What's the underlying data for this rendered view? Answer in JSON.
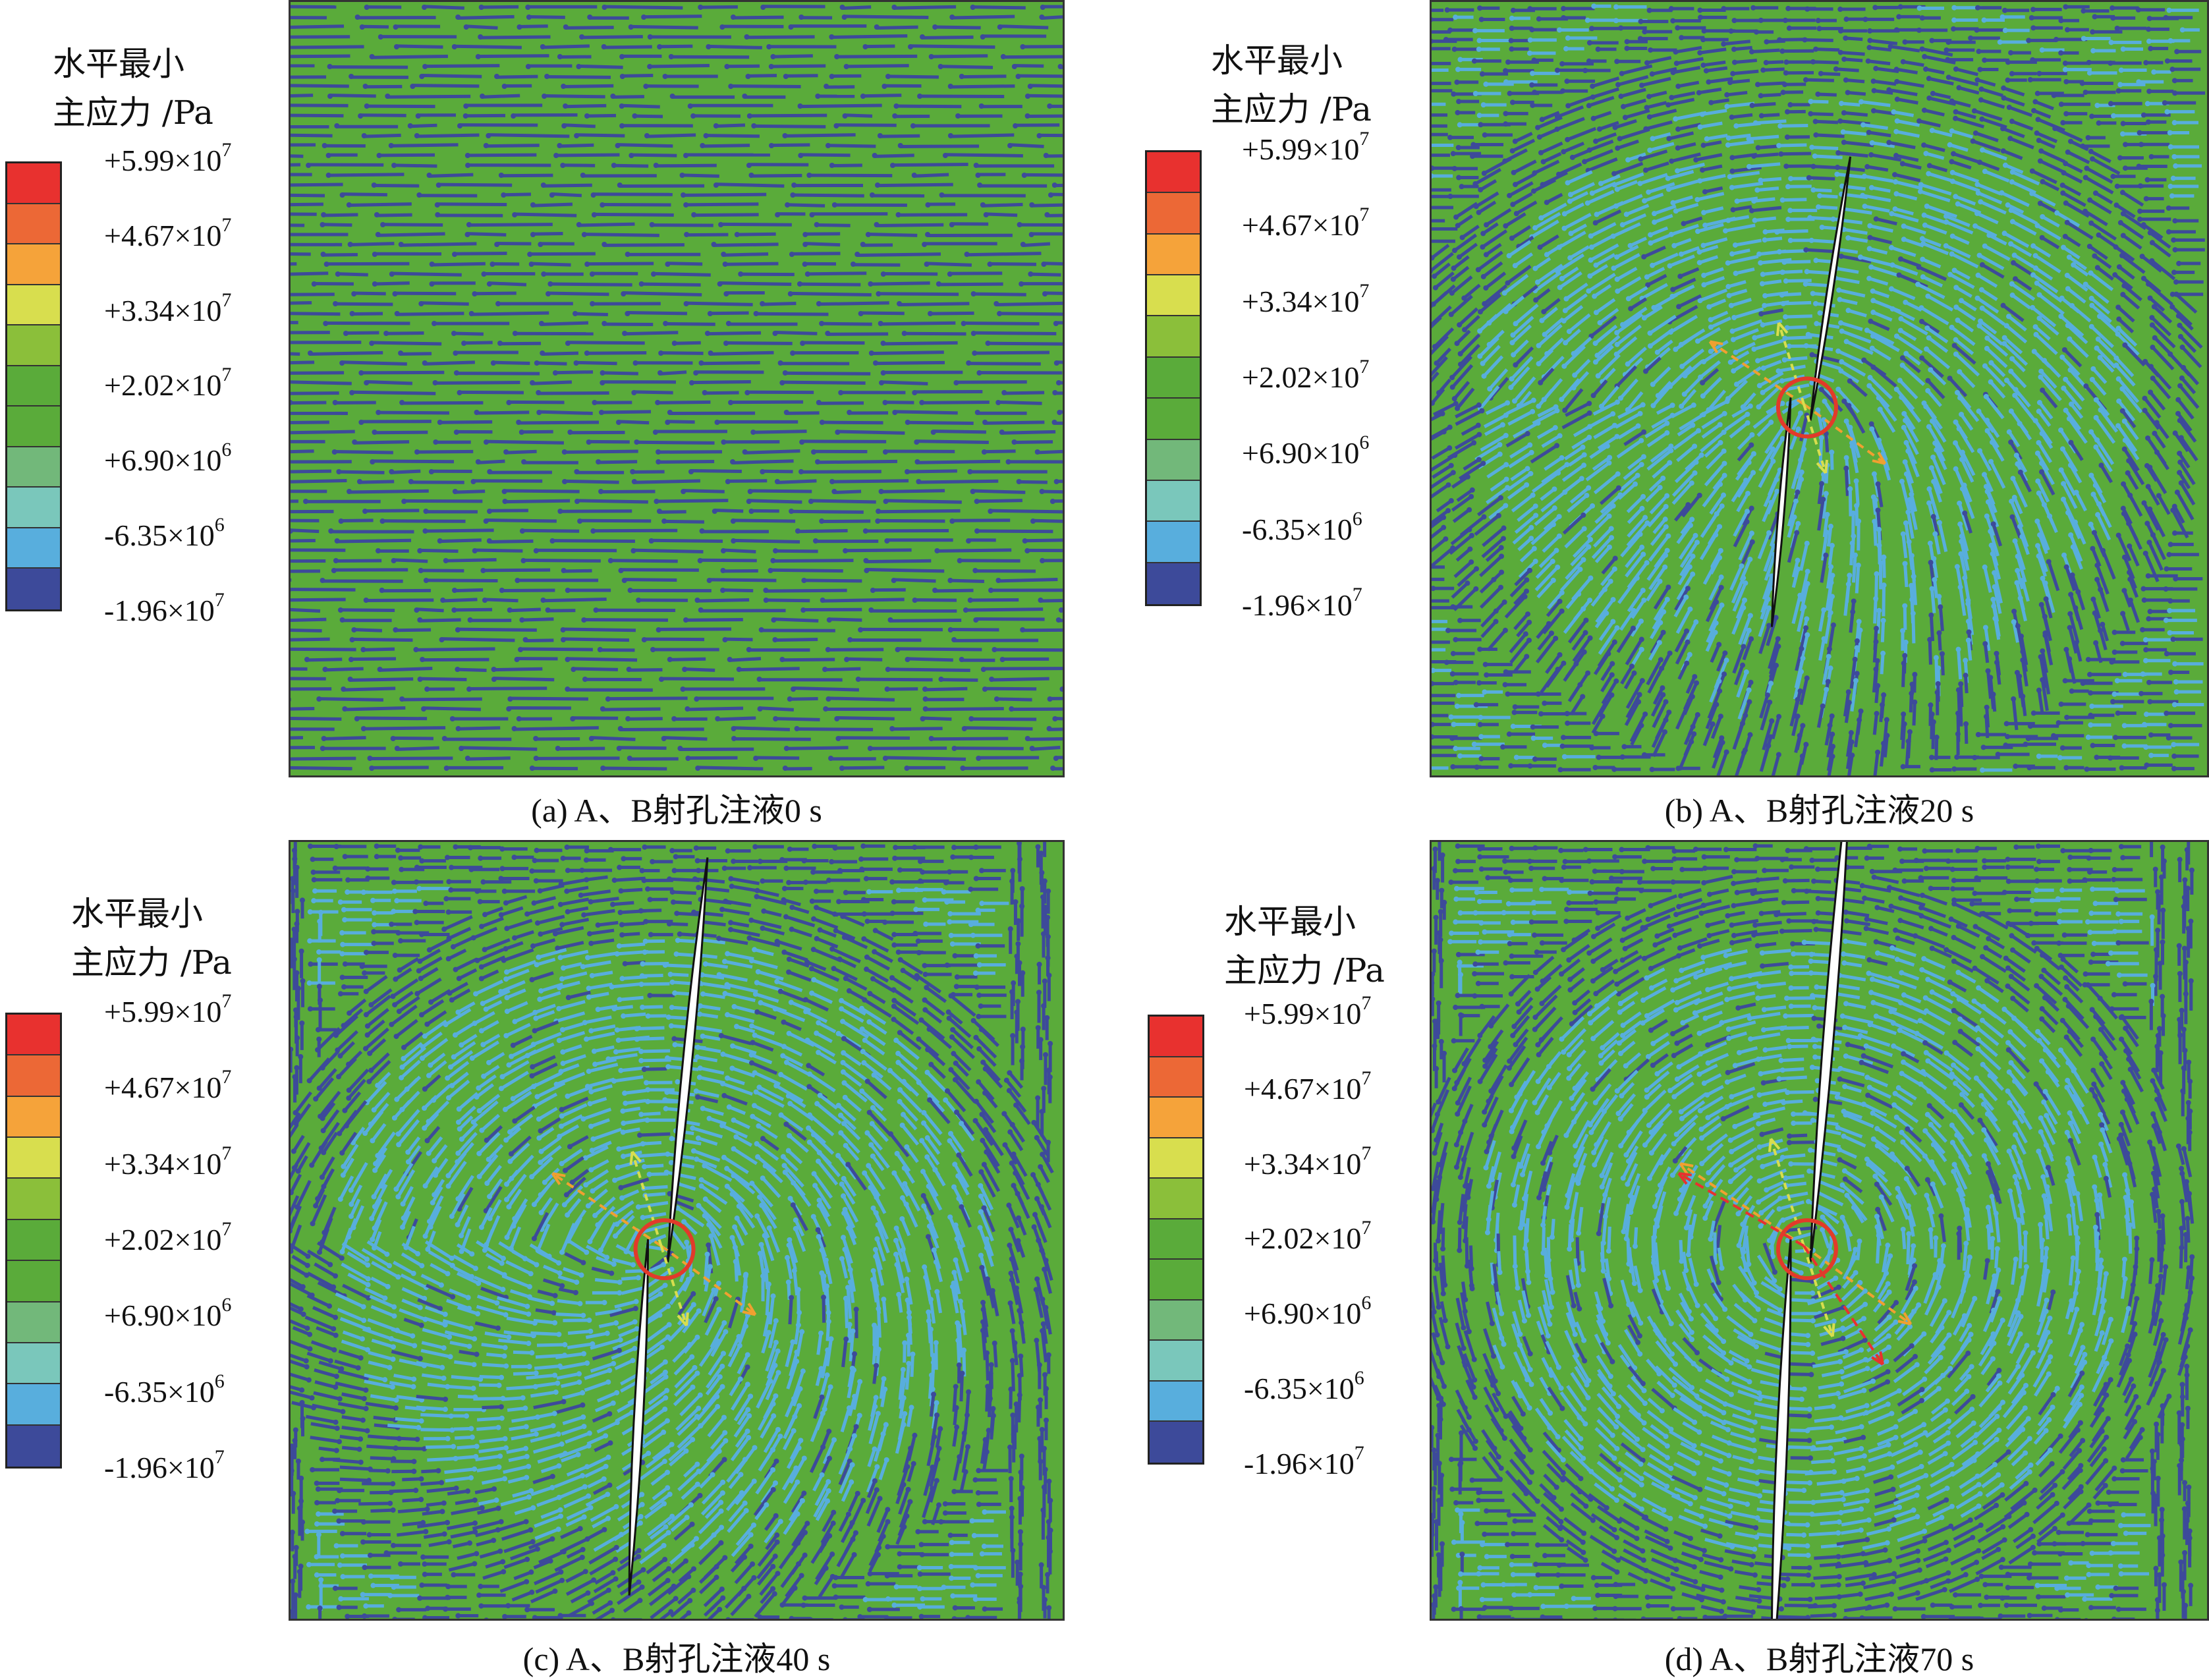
{
  "legend": {
    "title_line1": "水平最小",
    "title_line2": "主应力 /Pa",
    "colors": [
      "#e8312f",
      "#ec6836",
      "#f5a33a",
      "#d8de4e",
      "#8bbf3a",
      "#5aab3a",
      "#5aab3a",
      "#72b87a",
      "#7ac7bb",
      "#58aedd",
      "#3d4a9a"
    ],
    "labels": [
      {
        "mantissa": "+5.99×10",
        "exp": "7"
      },
      {
        "mantissa": "+4.67×10",
        "exp": "7"
      },
      {
        "mantissa": "+3.34×10",
        "exp": "7"
      },
      {
        "mantissa": "+2.02×10",
        "exp": "7"
      },
      {
        "mantissa": "+6.90×10",
        "exp": "6"
      },
      {
        "mantissa": "-6.35×10",
        "exp": "6"
      },
      {
        "mantissa": "-1.96×10",
        "exp": "7"
      }
    ]
  },
  "colors": {
    "field_green": "#5aab3a",
    "vector_dark": "#3d4a9a",
    "vector_light": "#58aedd",
    "fracture": "#ffffff",
    "circle": "#e23a2a"
  },
  "panels": [
    {
      "id": "a",
      "caption": "(a) A、B射孔注液0 s",
      "stage": 0
    },
    {
      "id": "b",
      "caption": "(b) A、B射孔注液20 s",
      "stage": 1
    },
    {
      "id": "c",
      "caption": "(c) A、B射孔注液40 s",
      "stage": 2
    },
    {
      "id": "d",
      "caption": "(d) A、B射孔注液70 s",
      "stage": 3
    }
  ]
}
